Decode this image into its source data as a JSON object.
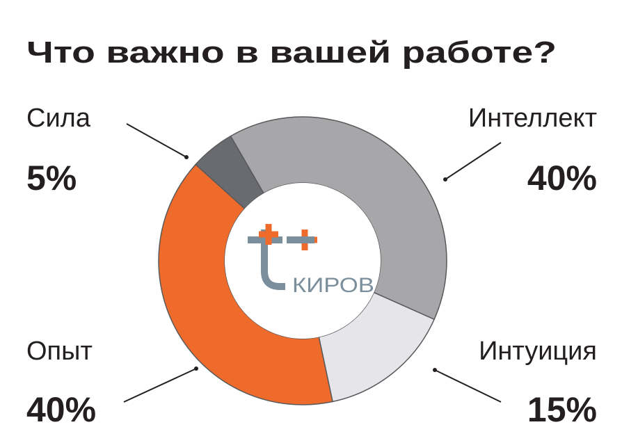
{
  "chart_data": {
    "type": "donut",
    "title": "Что важно в вашей работе?",
    "categories": [
      "Интеллект",
      "Интуиция",
      "Опыт",
      "Сила"
    ],
    "values": [
      40,
      15,
      40,
      5
    ],
    "value_labels": [
      "40%",
      "15%",
      "40%",
      "5%"
    ],
    "colors": [
      "#a7a7a9",
      "#e6e6ea",
      "#ee6b2b",
      "#6a6b70"
    ],
    "center_label": "КИРОВ"
  }
}
